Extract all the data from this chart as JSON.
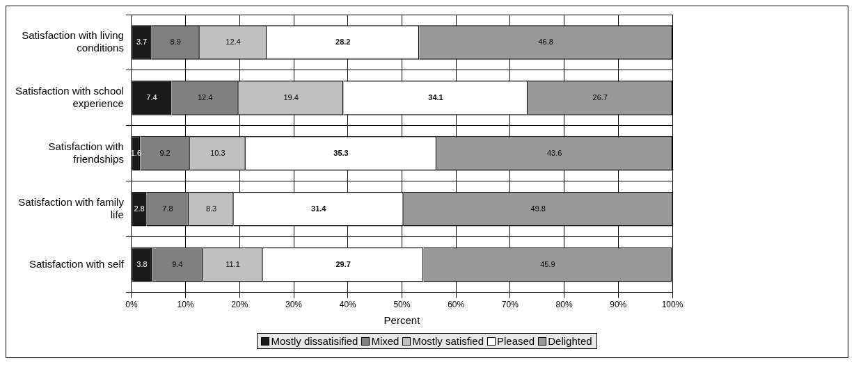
{
  "chart_data": {
    "type": "bar",
    "orientation": "horizontal",
    "stacked": true,
    "xlabel": "Percent",
    "categories": [
      "Satisfaction with living conditions",
      "Satisfaction with school experience",
      "Satisfaction with friendships",
      "Satisfaction with family life",
      "Satisfaction with self"
    ],
    "series": [
      {
        "name": "Mostly dissatisified",
        "color": "#1a1a1a",
        "values": [
          3.7,
          7.4,
          1.6,
          2.8,
          3.8
        ]
      },
      {
        "name": "Mixed",
        "color": "#808080",
        "values": [
          8.9,
          12.4,
          9.2,
          7.8,
          9.4
        ]
      },
      {
        "name": "Mostly satisfied",
        "color": "#c0c0c0",
        "values": [
          12.4,
          19.4,
          10.3,
          8.3,
          11.1
        ]
      },
      {
        "name": "Pleased",
        "color": "#ffffff",
        "values": [
          28.2,
          34.1,
          35.3,
          31.4,
          29.7
        ]
      },
      {
        "name": "Delighted",
        "color": "#999999",
        "values": [
          46.8,
          26.7,
          43.6,
          49.8,
          45.9
        ]
      }
    ],
    "xlim": [
      0,
      100
    ],
    "xticks": [
      {
        "value": 0,
        "label": "0%"
      },
      {
        "value": 10,
        "label": "10%"
      },
      {
        "value": 20,
        "label": "20%"
      },
      {
        "value": 30,
        "label": "30%"
      },
      {
        "value": 40,
        "label": "40%"
      },
      {
        "value": 50,
        "label": "50%"
      },
      {
        "value": 60,
        "label": "60%"
      },
      {
        "value": 70,
        "label": "70%"
      },
      {
        "value": 80,
        "label": "80%"
      },
      {
        "value": 90,
        "label": "90%"
      },
      {
        "value": 100,
        "label": "100%"
      }
    ],
    "grid": true,
    "legend": "bottom",
    "data_labels": true
  }
}
